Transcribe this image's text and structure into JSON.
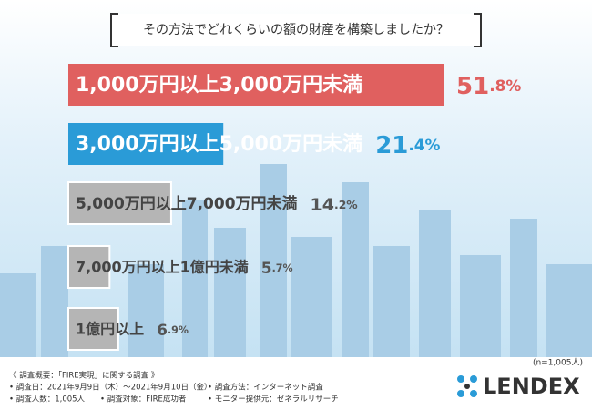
{
  "title": "その方法でどれくらいの額の財産を構築しましたか？",
  "chart_data": {
    "type": "hbar",
    "categories": [
      "1,000万円以上3,000万円未満",
      "3,000万円以上5,000万円未満",
      "5,000万円以上7,000万円未満",
      "7,000万円以上1億円未満",
      "1億円以上"
    ],
    "values": [
      51.8,
      21.4,
      14.2,
      5.7,
      6.9
    ],
    "value_labels": [
      "51.8%",
      "21.4%",
      "14.2%",
      "5.7%",
      "6.9%"
    ],
    "colors": [
      "#e0605f",
      "#2a9bd7",
      "#b5b5b5",
      "#b5b5b5",
      "#b5b5b5"
    ],
    "label_colors": [
      "#e0605f",
      "#2a9bd7",
      "#555555",
      "#555555",
      "#555555"
    ]
  },
  "sample_note": "(n=1,005人)",
  "footer": {
    "heading": "《 調査概要：「FIRE実現」に関する調査 》",
    "items": [
      "• 調査日：2021年9月9日（木）～2021年9月10日（金）",
      "• 調査方法：インターネット調査",
      "• 調査人数：1,005人",
      "• 調査対象：FIRE成功者",
      "• モニター提供元：ゼネラルリサーチ"
    ]
  },
  "logo": "LENDEX"
}
